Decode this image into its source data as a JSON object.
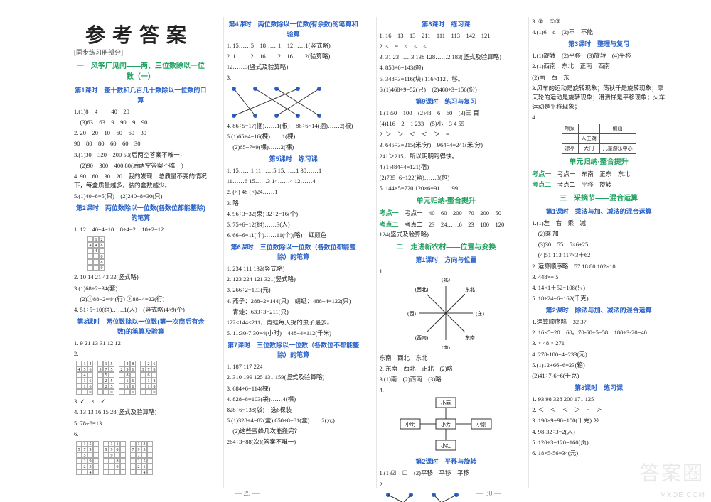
{
  "title": "参考答案",
  "subtitle_workbook": "[同步练习册部分]",
  "page_left": "29",
  "page_right": "30",
  "watermark_logo": "答案圈",
  "watermark_url": "MXQE.COM",
  "col1": {
    "unit1_title": "一　风筝厂见闻——两、三位数除以一位数（一）",
    "l1_title": "第1课时　整十数和几百几十数除以一位数的口算",
    "l1_lines": [
      "1.(1)8　4  十　40　20",
      "　(3)63　63　9　90　9　90",
      "2. 20　20　10　60　60　30",
      "   90　80　80　60　60　30",
      "3.(1)30　320　200  50(后两空答案不唯一)",
      "　(2)90　300　400  80(后两空答案不唯一)",
      "4. 90　60　30　20　我的发现：总质量不变的情况下，每盒质量越多，装的盒数越少。",
      "5.(1)40÷8=5(只)　(2)240÷8=30(只)"
    ],
    "l2_title": "第2课时　两位数除以一位数(各数位都能整除)的笔算",
    "l2_lines": [
      "1. 12　40÷4=10　8÷4=2　10+2=12"
    ],
    "l2_div": {
      "cols": 3,
      "rows": 6,
      "digits": [
        "",
        "1",
        "2",
        "4",
        "4",
        "8",
        "",
        "4",
        "",
        "",
        "",
        "8",
        "",
        "",
        "8",
        "",
        "",
        "0"
      ]
    },
    "l2_lines2": [
      "2. 10  14  21  43  32(竖式略)",
      "3.(1)68÷2=34(套)",
      "　(2)①88÷2=44(行)  ②88÷4=22(行)",
      "4. 51÷5=10(组)……1(人)　(竖式略)4≈9(个)"
    ],
    "l3_title": "第3课时　两位数除以一位数(第一次商后有余数)的笔算及验算",
    "l3_lines": [
      "1. 9  21  13  31  12  12"
    ],
    "l3_divs": [
      [
        "",
        "1",
        "4",
        "4",
        "5",
        "6",
        "",
        "4",
        "",
        "",
        "1",
        "6",
        "",
        "1",
        "6",
        "",
        "",
        "0"
      ],
      [
        "",
        "1",
        "5",
        "5",
        "7",
        "5",
        "",
        "5",
        "",
        "",
        "2",
        "5",
        "",
        "2",
        "5",
        "",
        "",
        "0"
      ],
      [
        "",
        "4",
        "8",
        "2",
        "9",
        "6",
        "",
        "8",
        "",
        "",
        "1",
        "6",
        "",
        "1",
        "6",
        "",
        "",
        "0"
      ],
      [
        "",
        "2",
        "6",
        "3",
        "7",
        "8",
        "",
        "6",
        "",
        "",
        "1",
        "8",
        "",
        "1",
        "8",
        "",
        "",
        "0"
      ]
    ],
    "l3_lines2": [
      "3. ✓　×　✓",
      "4. 13  13  16  15  28(竖式及验算略)",
      "5. 78÷6=13"
    ],
    "l3_divs2": [
      [
        "",
        "1",
        "5",
        "",
        "5",
        "7",
        "9",
        "",
        "",
        "5",
        "",
        "",
        "",
        "2",
        "9",
        "",
        "",
        "2",
        "5",
        "",
        "",
        "",
        "4",
        ""
      ]
    ]
  },
  "col2": {
    "l4_title": "第4课时　两位数除以一位数(有余数)的笔算和验算",
    "l4_lines": [
      "1. 15……5　18……1　12……1(竖式略)",
      "2. 11……2　16……2　16……2(验算略)",
      "   12……3(竖式及验算略)",
      "3."
    ],
    "l4_match": {
      "top_x": [
        10,
        40,
        70,
        100,
        130
      ],
      "bot_x": [
        10,
        40,
        70,
        100,
        130
      ],
      "pairs": [
        [
          0,
          1
        ],
        [
          1,
          3
        ],
        [
          2,
          4
        ],
        [
          3,
          0
        ],
        [
          4,
          2
        ]
      ],
      "dot_color": "#2a62c8"
    },
    "l4_lines2": [
      "4. 86÷5=17(捆)……1(根)　86÷6=14(捆)……2(根)",
      "5.(1)65÷4=16(棵)……1(棵)",
      "　(2)65÷7=9(棵)……2(棵)"
    ],
    "l5_title": "第5课时　练习课",
    "l5_lines": [
      "1. 15……1  11……5  15……1  30……1",
      "   11……6  15……3  14……4  12……4",
      "2. (×)  48  (×)24……1",
      "3. 略",
      "4. 96÷3=32(束)  32÷2=16(个)",
      "5. 75÷6=12(组)……3(人)",
      "6. 66÷6=11(个)……11(个)(略)　红颜色"
    ],
    "l6_title": "第6课时　三位数除以一位数（各数位都能整除）的笔算",
    "l6_lines": [
      "1. 234  111  132(竖式略)",
      "2. 123  224  121  321(竖式略)",
      "3. 266÷2=133(元)",
      "4. 燕子：288÷2=144(只)　蜻蜓：488÷4=122(只)",
      "　青蛙：633÷3=211(只)",
      "   122<144<211，青蛙每天捉的虫子最多。",
      "5. 11:30-7:30=4(小时)　448÷4=112(千米)"
    ],
    "l7_title": "第7课时　三位数除以一位数（各数位不都能整除）的笔算",
    "l7_lines": [
      "1. 187  117  224",
      "2. 310  199  125  131  159(竖式及验算略)",
      "3. 684÷6=114(棵)",
      "4. 828÷8=103(袋)……4(棵)",
      "   828÷6=138(袋)　选6棵装",
      "5.(1)328÷4=82(盒)  650÷8=81(盒)……2(元)",
      "　(2)这些蜜蜂几次能搬完？",
      "      264÷3=88(次)(答案不唯一)"
    ]
  },
  "col3": {
    "l8_title": "第8课时　练习课",
    "l8_lines": [
      "1. 16　13　13　211　111　113　142　121",
      "2. <　=　<　<　<",
      "3. 31  23……3  138  128……2  183(竖式及验算略)",
      "4. 858÷6=143(颗)",
      "5. 348÷3=116(块)  116>112，够。",
      "6.(1)468÷9=52(只)　(2)468÷3=156(份)"
    ],
    "l9_title": "第9课时　练习与复习",
    "l9_lines": [
      "1.(1)50　100　(2)48　6　60　(3)三  百",
      "  (4)116　2　1  233　(5)小　3  4 55",
      "2. ＞　＞　＜　＜　＞　=",
      "3. 645÷3=215(米/分)　964÷4=241(米/分)",
      "   241＞215，所以明明跑得快。",
      "4.(1)484÷4=121(宿)",
      "  (2)735÷6=122(箱)……3(包)",
      "5. 144×5=720  120×6=91……99"
    ],
    "sum_title": "单元归纳·整合提升",
    "sum_lines": [
      "考点一　40　60　200　70　200　50",
      "考点二　23　24……6　23　180　120　124(竖式及验算略)"
    ],
    "unit2_title": "二　走进新农村——位置与变换",
    "l2_1_title": "第1课时　方向与位置",
    "compass": {
      "labels": [
        "(北)",
        "东北",
        "(东)",
        "东南",
        "(南)",
        "(西南)",
        "(西)",
        "(西北)"
      ]
    },
    "l2_1_lines": [
      "   东南　西北　东北",
      "2. 东南　西北　正北　(2)略",
      "3.(1)南　(2)西南　(3)略",
      "4."
    ],
    "diagram_people": {
      "top": "小丽",
      "left": "小明",
      "center": "小芳",
      "right": "小刚",
      "bottom": "小红"
    },
    "l2_2_title": "第2课时　平移与旋转",
    "l2_2_lines": [
      "1.(1)☑　☐　(2)平移　平移　平移",
      "2."
    ],
    "l2_2_match": {
      "top_x": [
        12,
        44,
        76,
        108
      ],
      "bot_x": [
        12,
        44,
        76,
        108
      ],
      "pairs": [
        [
          0,
          2
        ],
        [
          1,
          0
        ],
        [
          2,
          3
        ],
        [
          3,
          1
        ]
      ],
      "dot_color": "#2a62c8"
    }
  },
  "col4": {
    "lines_top": [
      "3. ②　①③",
      "4.(1)6　d　(2)不　不能"
    ],
    "l3_title": "第3课时　整理与复习",
    "l3_lines": [
      "1.(1)旋转　(2)平移　(3)旋转　(4)平移",
      "2.(1)西南　东北　正南　西南",
      "  (2)南　西　东",
      "3.风车的运动是旋转现象；荡秋千是旋转现象；摩天轮的运动是旋转现象；滑滑梯是平移现象；火车运动是平移现象；"
    ],
    "layout_table": [
      [
        "喷泉",
        "",
        "假山"
      ],
      [
        "",
        "人工湖",
        ""
      ],
      [
        "凉亭",
        "大门",
        "儿童游乐中心"
      ]
    ],
    "sum2_title": "单元归纳·整合提升",
    "sum2_lines": [
      "考点一　东南　正东　东北",
      "考点二　平移　旋转"
    ],
    "unit3_title": "三　采摘节——混合运算",
    "u3_l1_title": "第1课时　乘法与加、减法的混合运算",
    "u3_l1_lines": [
      "1.(1)左　右　乘　减",
      "　(2)乘  加",
      "　(3)30　55　5×6+25",
      "　(4)51  113  117×3＋62",
      "2. 运算顺序略　57  18  80  102×10",
      "3. 448×=  5",
      "4. 14×1＋52=108(只)",
      "5. 18÷24÷6=162(千克)"
    ],
    "u3_l2_title": "第2课时　除法与加、减法的混合运算",
    "u3_l2_lines": [
      "1.运算顺序略　32  37",
      "2. 16×5=20一60。70-60÷5=58　180÷3-20=40",
      "3. ×  48  ×  271",
      "4. 278-180÷4=233(元)",
      "5.(1)12+66÷6=23(箱)",
      "   (2)41÷7-6=6(千克)"
    ],
    "u3_l3_title": "第3课时　练习课",
    "u3_l3_lines": [
      "1. 93  98  328  200  171  125",
      "2. ＜　＜　＜　＞　=　＞",
      "3. 190×9+90=100(千克) ⊗",
      "4. 98-32÷3=2(人)",
      "5. 120÷3+120=160(页)",
      "6. 18×5-56=34(元)"
    ]
  }
}
